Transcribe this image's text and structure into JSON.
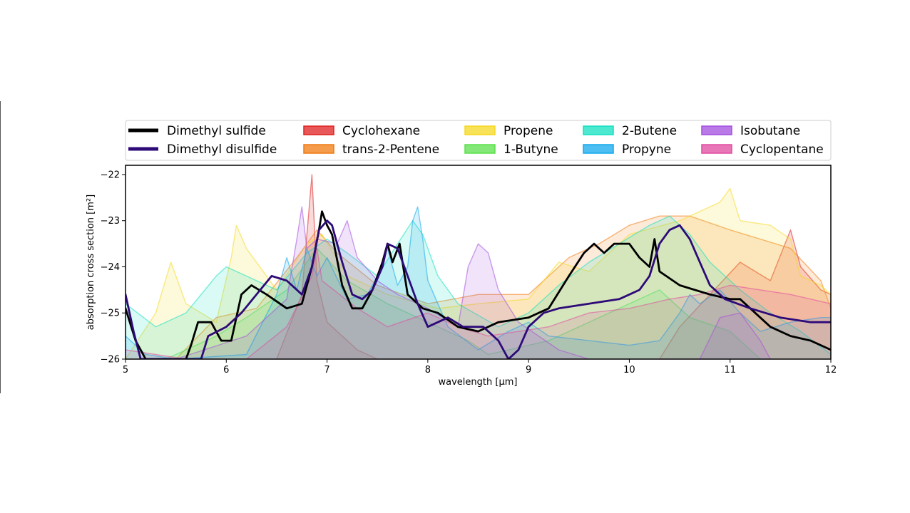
{
  "chart_data": {
    "type": "area",
    "title": "",
    "xlabel": "wavelength [μm]",
    "ylabel": "absorption cross section [m²]",
    "xlim": [
      5,
      12
    ],
    "ylim": [
      -26,
      -21.8
    ],
    "x_ticks": [
      "5",
      "6",
      "7",
      "8",
      "9",
      "10",
      "11",
      "12"
    ],
    "y_ticks": [
      "−22",
      "−23",
      "−24",
      "−25",
      "−26"
    ],
    "grid": false,
    "legend_position": "top",
    "series": [
      {
        "name": "Dimethyl sulfide",
        "color": "#000000",
        "style": "line",
        "points": [
          [
            5.0,
            -24.9
          ],
          [
            5.1,
            -25.6
          ],
          [
            5.2,
            -26.0
          ],
          [
            5.5,
            -26.0
          ],
          [
            5.6,
            -26.0
          ],
          [
            5.65,
            -25.7
          ],
          [
            5.72,
            -25.2
          ],
          [
            5.85,
            -25.2
          ],
          [
            5.95,
            -25.6
          ],
          [
            6.05,
            -25.6
          ],
          [
            6.15,
            -24.6
          ],
          [
            6.25,
            -24.4
          ],
          [
            6.4,
            -24.6
          ],
          [
            6.6,
            -24.9
          ],
          [
            6.75,
            -24.8
          ],
          [
            6.85,
            -24.0
          ],
          [
            6.92,
            -23.2
          ],
          [
            6.95,
            -22.8
          ],
          [
            7.0,
            -23.1
          ],
          [
            7.05,
            -23.3
          ],
          [
            7.15,
            -24.4
          ],
          [
            7.25,
            -24.9
          ],
          [
            7.35,
            -24.9
          ],
          [
            7.45,
            -24.5
          ],
          [
            7.55,
            -23.9
          ],
          [
            7.6,
            -23.5
          ],
          [
            7.65,
            -23.9
          ],
          [
            7.72,
            -23.5
          ],
          [
            7.8,
            -24.6
          ],
          [
            7.95,
            -24.9
          ],
          [
            8.1,
            -25.0
          ],
          [
            8.3,
            -25.3
          ],
          [
            8.5,
            -25.4
          ],
          [
            8.7,
            -25.2
          ],
          [
            9.0,
            -25.1
          ],
          [
            9.2,
            -24.9
          ],
          [
            9.4,
            -24.2
          ],
          [
            9.55,
            -23.7
          ],
          [
            9.65,
            -23.5
          ],
          [
            9.7,
            -23.6
          ],
          [
            9.75,
            -23.7
          ],
          [
            9.85,
            -23.5
          ],
          [
            10.0,
            -23.5
          ],
          [
            10.1,
            -23.8
          ],
          [
            10.2,
            -24.0
          ],
          [
            10.25,
            -23.4
          ],
          [
            10.3,
            -24.1
          ],
          [
            10.5,
            -24.4
          ],
          [
            10.65,
            -24.5
          ],
          [
            10.8,
            -24.6
          ],
          [
            11.0,
            -24.7
          ],
          [
            11.1,
            -24.7
          ],
          [
            11.2,
            -24.9
          ],
          [
            11.4,
            -25.3
          ],
          [
            11.6,
            -25.5
          ],
          [
            11.8,
            -25.6
          ],
          [
            12.0,
            -25.8
          ]
        ]
      },
      {
        "name": "Dimethyl disulfide",
        "color": "#2d0a78",
        "style": "line",
        "points": [
          [
            5.0,
            -24.6
          ],
          [
            5.08,
            -25.4
          ],
          [
            5.15,
            -26.0
          ],
          [
            5.75,
            -26.0
          ],
          [
            5.82,
            -25.5
          ],
          [
            6.0,
            -25.3
          ],
          [
            6.15,
            -25.0
          ],
          [
            6.3,
            -24.6
          ],
          [
            6.45,
            -24.2
          ],
          [
            6.6,
            -24.3
          ],
          [
            6.75,
            -24.6
          ],
          [
            6.85,
            -24.0
          ],
          [
            6.92,
            -23.2
          ],
          [
            7.0,
            -23.0
          ],
          [
            7.05,
            -23.1
          ],
          [
            7.15,
            -23.9
          ],
          [
            7.25,
            -24.6
          ],
          [
            7.35,
            -24.7
          ],
          [
            7.45,
            -24.5
          ],
          [
            7.55,
            -24.0
          ],
          [
            7.6,
            -23.5
          ],
          [
            7.7,
            -23.6
          ],
          [
            7.8,
            -24.2
          ],
          [
            7.9,
            -24.8
          ],
          [
            8.0,
            -25.3
          ],
          [
            8.2,
            -25.1
          ],
          [
            8.35,
            -25.3
          ],
          [
            8.55,
            -25.3
          ],
          [
            8.7,
            -25.6
          ],
          [
            8.8,
            -26.0
          ],
          [
            8.9,
            -25.8
          ],
          [
            9.0,
            -25.3
          ],
          [
            9.15,
            -25.0
          ],
          [
            9.3,
            -24.9
          ],
          [
            9.6,
            -24.8
          ],
          [
            9.9,
            -24.7
          ],
          [
            10.1,
            -24.5
          ],
          [
            10.2,
            -24.2
          ],
          [
            10.3,
            -23.5
          ],
          [
            10.4,
            -23.2
          ],
          [
            10.5,
            -23.1
          ],
          [
            10.6,
            -23.4
          ],
          [
            10.7,
            -23.9
          ],
          [
            10.8,
            -24.4
          ],
          [
            10.95,
            -24.7
          ],
          [
            11.2,
            -24.9
          ],
          [
            11.5,
            -25.1
          ],
          [
            11.8,
            -25.2
          ],
          [
            12.0,
            -25.2
          ]
        ]
      },
      {
        "name": "Cyclohexane",
        "color": "#e02020",
        "style": "fill",
        "points": [
          [
            6.5,
            -26.0
          ],
          [
            6.75,
            -24.6
          ],
          [
            6.85,
            -22.0
          ],
          [
            6.9,
            -24.3
          ],
          [
            7.0,
            -25.2
          ],
          [
            7.3,
            -25.8
          ],
          [
            7.5,
            -26.0
          ],
          [
            10.3,
            -26.0
          ],
          [
            10.5,
            -25.3
          ],
          [
            10.8,
            -24.6
          ],
          [
            11.1,
            -23.9
          ],
          [
            11.4,
            -24.3
          ],
          [
            11.6,
            -23.2
          ],
          [
            11.7,
            -24.0
          ],
          [
            11.9,
            -24.5
          ],
          [
            12.0,
            -24.6
          ]
        ]
      },
      {
        "name": "trans-2-Pentene",
        "color": "#f07a10",
        "style": "fill",
        "points": [
          [
            5.5,
            -26.0
          ],
          [
            5.9,
            -25.1
          ],
          [
            6.3,
            -24.9
          ],
          [
            6.7,
            -23.8
          ],
          [
            6.9,
            -23.2
          ],
          [
            7.1,
            -23.7
          ],
          [
            7.5,
            -24.4
          ],
          [
            8.0,
            -24.8
          ],
          [
            8.5,
            -24.6
          ],
          [
            9.0,
            -24.6
          ],
          [
            9.4,
            -23.8
          ],
          [
            9.7,
            -23.5
          ],
          [
            10.0,
            -23.1
          ],
          [
            10.3,
            -22.9
          ],
          [
            10.6,
            -22.9
          ],
          [
            11.0,
            -23.2
          ],
          [
            11.3,
            -23.4
          ],
          [
            11.6,
            -23.6
          ],
          [
            11.9,
            -24.3
          ],
          [
            12.0,
            -24.9
          ]
        ]
      },
      {
        "name": "Propene",
        "color": "#f5d820",
        "style": "fill",
        "points": [
          [
            5.0,
            -26.0
          ],
          [
            5.3,
            -25.0
          ],
          [
            5.45,
            -23.9
          ],
          [
            5.6,
            -24.8
          ],
          [
            5.9,
            -25.2
          ],
          [
            6.05,
            -23.8
          ],
          [
            6.1,
            -23.1
          ],
          [
            6.2,
            -23.6
          ],
          [
            6.5,
            -24.5
          ],
          [
            6.8,
            -23.5
          ],
          [
            6.95,
            -23.3
          ],
          [
            7.2,
            -24.2
          ],
          [
            7.6,
            -24.6
          ],
          [
            8.1,
            -24.9
          ],
          [
            8.5,
            -24.8
          ],
          [
            9.0,
            -24.7
          ],
          [
            9.3,
            -23.9
          ],
          [
            9.6,
            -24.1
          ],
          [
            10.0,
            -23.3
          ],
          [
            10.5,
            -23.0
          ],
          [
            10.9,
            -22.6
          ],
          [
            11.0,
            -22.3
          ],
          [
            11.1,
            -23.0
          ],
          [
            11.4,
            -23.1
          ],
          [
            11.6,
            -23.4
          ],
          [
            11.7,
            -24.2
          ],
          [
            11.9,
            -24.4
          ],
          [
            12.0,
            -24.6
          ]
        ]
      },
      {
        "name": "1-Butyne",
        "color": "#5ae04a",
        "style": "fill",
        "points": [
          [
            5.4,
            -26.0
          ],
          [
            5.9,
            -25.5
          ],
          [
            6.2,
            -25.1
          ],
          [
            6.6,
            -24.5
          ],
          [
            6.9,
            -23.6
          ],
          [
            7.2,
            -24.3
          ],
          [
            7.6,
            -24.8
          ],
          [
            8.0,
            -25.2
          ],
          [
            8.4,
            -25.6
          ],
          [
            8.6,
            -25.9
          ],
          [
            9.2,
            -25.6
          ],
          [
            9.6,
            -25.2
          ],
          [
            10.0,
            -24.8
          ],
          [
            10.3,
            -24.5
          ],
          [
            10.6,
            -25.1
          ],
          [
            11.0,
            -25.4
          ],
          [
            11.3,
            -26.0
          ]
        ]
      },
      {
        "name": "2-Butene",
        "color": "#12e0c0",
        "style": "fill",
        "points": [
          [
            5.0,
            -24.8
          ],
          [
            5.3,
            -25.3
          ],
          [
            5.6,
            -25.0
          ],
          [
            5.9,
            -24.2
          ],
          [
            6.0,
            -24.0
          ],
          [
            6.2,
            -24.2
          ],
          [
            6.5,
            -24.5
          ],
          [
            6.8,
            -23.7
          ],
          [
            7.0,
            -23.4
          ],
          [
            7.2,
            -23.7
          ],
          [
            7.5,
            -24.2
          ],
          [
            7.7,
            -23.5
          ],
          [
            7.85,
            -23.0
          ],
          [
            7.95,
            -23.3
          ],
          [
            8.1,
            -24.2
          ],
          [
            8.3,
            -24.8
          ],
          [
            8.7,
            -25.3
          ],
          [
            9.0,
            -25.0
          ],
          [
            9.3,
            -24.4
          ],
          [
            9.6,
            -23.9
          ],
          [
            9.9,
            -23.5
          ],
          [
            10.2,
            -23.1
          ],
          [
            10.4,
            -22.9
          ],
          [
            10.6,
            -23.3
          ],
          [
            10.8,
            -23.9
          ],
          [
            11.1,
            -24.5
          ],
          [
            11.4,
            -25.0
          ],
          [
            11.7,
            -25.4
          ],
          [
            12.0,
            -25.9
          ]
        ]
      },
      {
        "name": "Propyne",
        "color": "#10a8ec",
        "style": "fill",
        "points": [
          [
            5.0,
            -25.5
          ],
          [
            5.2,
            -25.9
          ],
          [
            5.5,
            -26.0
          ],
          [
            6.2,
            -25.9
          ],
          [
            6.5,
            -24.6
          ],
          [
            6.6,
            -23.8
          ],
          [
            6.7,
            -24.5
          ],
          [
            6.8,
            -23.6
          ],
          [
            6.9,
            -24.2
          ],
          [
            7.0,
            -23.8
          ],
          [
            7.2,
            -24.7
          ],
          [
            7.4,
            -24.6
          ],
          [
            7.5,
            -24.2
          ],
          [
            7.6,
            -23.6
          ],
          [
            7.7,
            -24.4
          ],
          [
            7.8,
            -24.0
          ],
          [
            7.85,
            -23.0
          ],
          [
            7.9,
            -22.7
          ],
          [
            7.95,
            -23.4
          ],
          [
            8.0,
            -24.3
          ],
          [
            8.2,
            -25.3
          ],
          [
            8.5,
            -25.8
          ],
          [
            8.8,
            -25.4
          ],
          [
            9.0,
            -25.2
          ],
          [
            9.2,
            -25.5
          ],
          [
            9.6,
            -25.6
          ],
          [
            10.0,
            -25.7
          ],
          [
            10.3,
            -25.6
          ],
          [
            10.5,
            -25.0
          ],
          [
            10.6,
            -24.6
          ],
          [
            10.7,
            -24.8
          ],
          [
            10.9,
            -24.5
          ],
          [
            11.1,
            -25.0
          ],
          [
            11.3,
            -25.4
          ],
          [
            11.6,
            -25.2
          ],
          [
            11.9,
            -25.1
          ],
          [
            12.0,
            -25.1
          ]
        ]
      },
      {
        "name": "Isobutane",
        "color": "#a24ee0",
        "style": "fill",
        "points": [
          [
            5.5,
            -26.0
          ],
          [
            6.2,
            -25.5
          ],
          [
            6.6,
            -24.7
          ],
          [
            6.7,
            -23.4
          ],
          [
            6.75,
            -22.7
          ],
          [
            6.8,
            -23.6
          ],
          [
            6.9,
            -23.4
          ],
          [
            7.1,
            -23.5
          ],
          [
            7.2,
            -23.0
          ],
          [
            7.3,
            -23.8
          ],
          [
            7.5,
            -24.3
          ],
          [
            7.7,
            -24.6
          ],
          [
            8.0,
            -24.9
          ],
          [
            8.3,
            -25.3
          ],
          [
            8.4,
            -24.0
          ],
          [
            8.5,
            -23.5
          ],
          [
            8.6,
            -23.7
          ],
          [
            8.7,
            -24.5
          ],
          [
            8.9,
            -25.2
          ],
          [
            9.3,
            -25.8
          ],
          [
            9.6,
            -26.0
          ],
          [
            10.7,
            -26.0
          ],
          [
            10.9,
            -25.1
          ],
          [
            11.1,
            -25.0
          ],
          [
            11.3,
            -25.6
          ],
          [
            11.4,
            -26.0
          ]
        ]
      },
      {
        "name": "Cyclopentane",
        "color": "#e04aa0",
        "style": "fill",
        "points": [
          [
            5.0,
            -25.8
          ],
          [
            5.6,
            -26.0
          ],
          [
            6.2,
            -26.0
          ],
          [
            6.6,
            -25.3
          ],
          [
            6.85,
            -24.2
          ],
          [
            6.9,
            -23.6
          ],
          [
            6.95,
            -24.3
          ],
          [
            7.3,
            -24.9
          ],
          [
            7.6,
            -25.3
          ],
          [
            8.0,
            -25.0
          ],
          [
            8.3,
            -25.3
          ],
          [
            8.6,
            -25.5
          ],
          [
            9.2,
            -25.3
          ],
          [
            9.6,
            -25.0
          ],
          [
            10.0,
            -24.9
          ],
          [
            10.4,
            -24.7
          ],
          [
            10.7,
            -24.6
          ],
          [
            11.0,
            -24.4
          ],
          [
            11.3,
            -24.5
          ],
          [
            11.6,
            -24.6
          ],
          [
            12.0,
            -24.8
          ]
        ]
      }
    ]
  }
}
